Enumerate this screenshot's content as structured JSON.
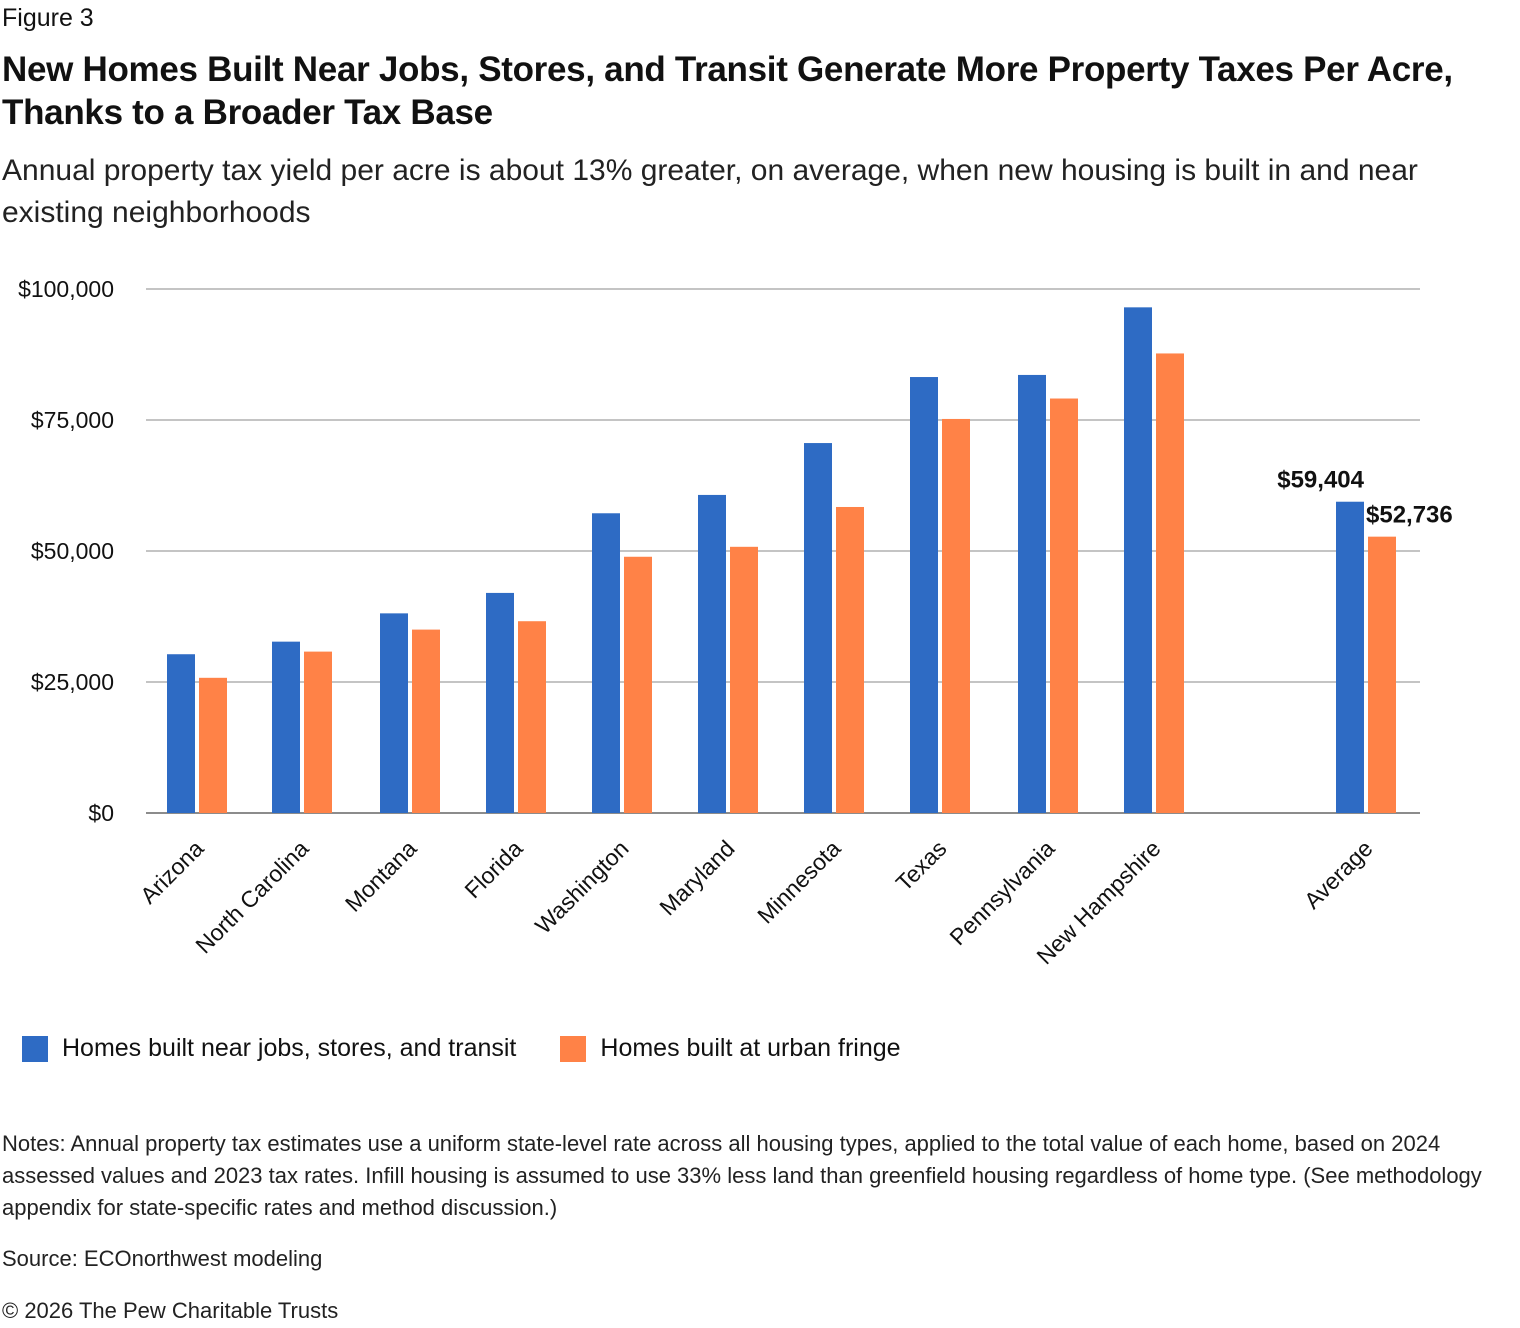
{
  "figure": {
    "label": "Figure 3",
    "title": "New Homes Built Near Jobs, Stores, and Transit Generate More Property Taxes Per Acre, Thanks to a Broader Tax Base",
    "subtitle": "Annual property tax yield per acre is about 13% greater, on average, when new housing is built in and near existing neighborhoods",
    "notes": "Notes: Annual property tax estimates use a uniform state-level rate across all housing types, applied to the total value of each home, based on 2024 assessed values and 2023 tax rates. Infill housing is assumed to use 33% less land than greenfield housing regardless of home type. (See methodology appendix for state-specific rates and method discussion.)",
    "source": "Source: ECOnorthwest modeling",
    "copyright": "© 2026 The Pew Charitable Trusts"
  },
  "colors": {
    "series_near": "#2E6BC4",
    "series_fringe": "#FF8247",
    "grid": "#b0b0b0",
    "axis": "#8c8c8c"
  },
  "chart_data": {
    "type": "bar",
    "categories": [
      "Arizona",
      "North Carolina",
      "Montana",
      "Florida",
      "Washington",
      "Maryland",
      "Minnesota",
      "Texas",
      "Pennsylvania",
      "New Hampshire",
      "Average"
    ],
    "series": [
      {
        "name": "Homes built near jobs, stores, and transit",
        "values": [
          30300,
          32700,
          38100,
          42000,
          57200,
          60700,
          70600,
          83200,
          83600,
          96500,
          59404
        ]
      },
      {
        "name": "Homes built at urban fringe",
        "values": [
          25800,
          30800,
          35000,
          36600,
          48900,
          50800,
          58400,
          75200,
          79100,
          87700,
          52736
        ]
      }
    ],
    "data_labels": [
      {
        "category": "Average",
        "series": 0,
        "text": "$59,404"
      },
      {
        "category": "Average",
        "series": 1,
        "text": "$52,736"
      }
    ],
    "ylim": [
      0,
      100000
    ],
    "yticks": [
      0,
      25000,
      50000,
      75000,
      100000
    ],
    "ytick_labels": [
      "$0",
      "$25,000",
      "$50,000",
      "$75,000",
      "$100,000"
    ],
    "xlabel": "",
    "ylabel": "",
    "grid": true,
    "legend_position": "bottom-left"
  }
}
